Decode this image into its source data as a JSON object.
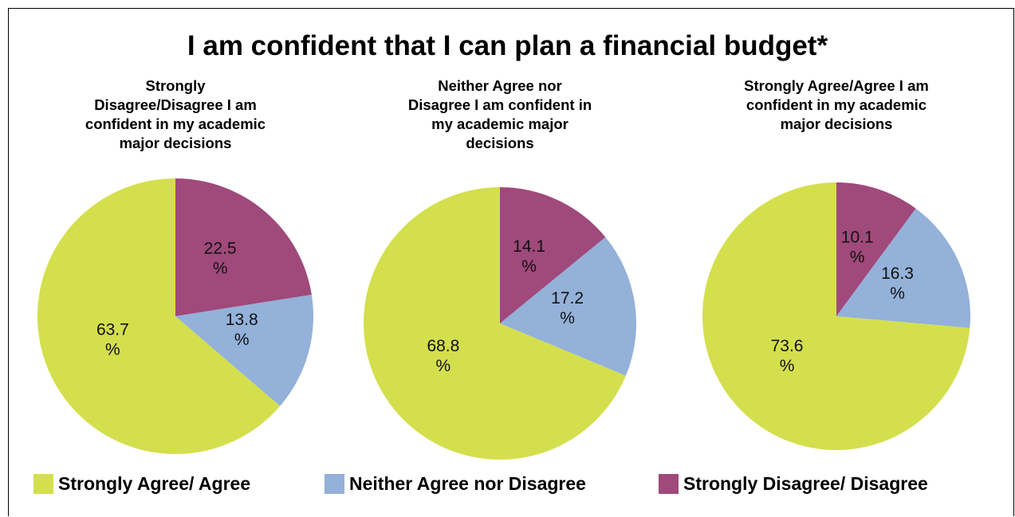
{
  "chart_data": {
    "type": "pie",
    "title": "I am confident that I can plan a financial budget*",
    "legend": {
      "position": "bottom",
      "entries": [
        {
          "label": "Strongly Agree/ Agree",
          "color": "#d4df4d"
        },
        {
          "label": "Neither Agree nor Disagree",
          "color": "#93b1d9"
        },
        {
          "label": "Strongly Disagree/ Disagree",
          "color": "#a0497b"
        }
      ]
    },
    "charts": [
      {
        "subtitle": "Strongly\nDisagree/Disagree  I am\nconfident in my academic\nmajor decisions",
        "slices": [
          {
            "category": "Strongly Disagree/ Disagree",
            "value": 22.5,
            "label": "22.5\n%"
          },
          {
            "category": "Neither Agree nor Disagree",
            "value": 13.8,
            "label": "13.8\n%"
          },
          {
            "category": "Strongly Agree/ Agree",
            "value": 63.7,
            "label": "63.7\n%"
          }
        ]
      },
      {
        "subtitle": "Neither Agree  nor\nDisagree  I am confident in\nmy academic major\ndecisions",
        "slices": [
          {
            "category": "Strongly Disagree/ Disagree",
            "value": 14.1,
            "label": "14.1\n%"
          },
          {
            "category": "Neither Agree nor Disagree",
            "value": 17.2,
            "label": "17.2\n%"
          },
          {
            "category": "Strongly Agree/ Agree",
            "value": 68.8,
            "label": "68.8\n%"
          }
        ]
      },
      {
        "subtitle": "Strongly Agree/Agree I am\nconfident in my academic\nmajor decisions",
        "slices": [
          {
            "category": "Strongly Disagree/ Disagree",
            "value": 10.1,
            "label": "10.1\n%"
          },
          {
            "category": "Neither Agree nor Disagree",
            "value": 16.3,
            "label": "16.3\n%"
          },
          {
            "category": "Strongly Agree/ Agree",
            "value": 73.6,
            "label": "73.6\n%"
          }
        ]
      }
    ]
  }
}
